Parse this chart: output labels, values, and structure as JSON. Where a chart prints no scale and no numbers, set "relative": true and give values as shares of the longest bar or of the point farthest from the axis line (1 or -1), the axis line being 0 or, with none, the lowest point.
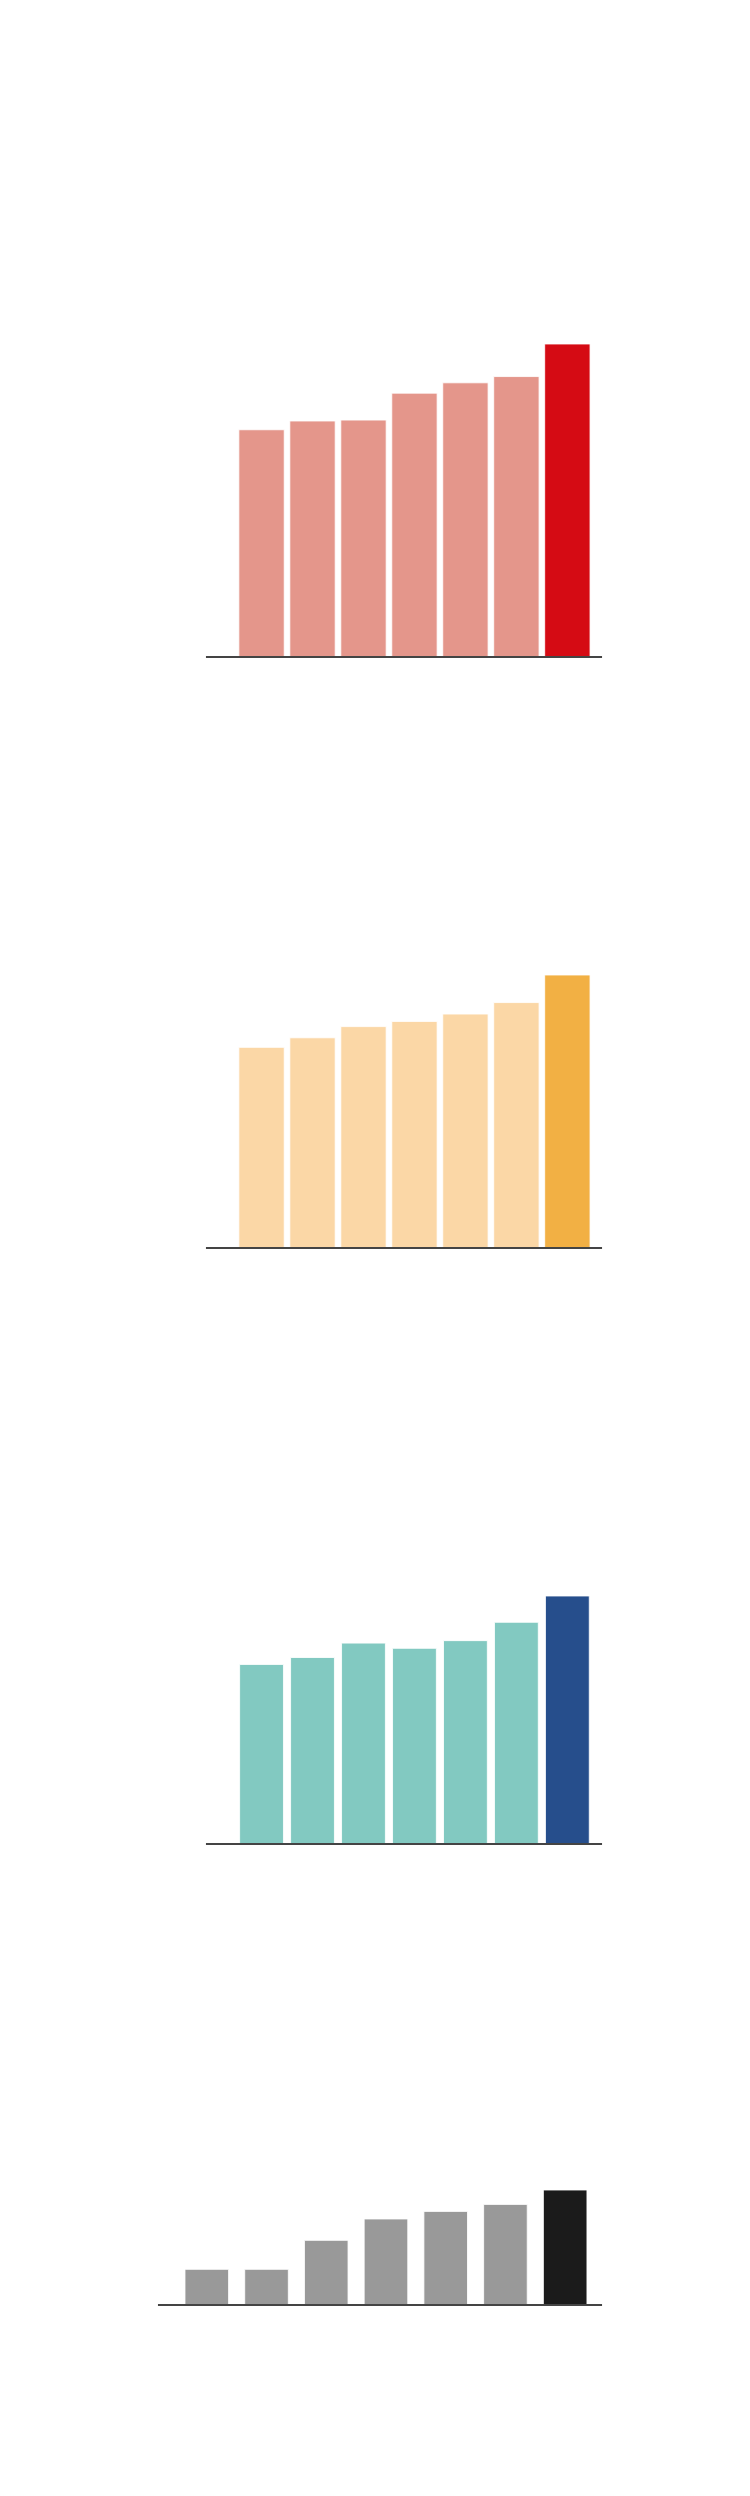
{
  "chart_data": [
    {
      "type": "bar",
      "relative": true,
      "categories": [
        null,
        null,
        null,
        null,
        null,
        null,
        null
      ],
      "values": [
        0.726,
        0.754,
        0.757,
        0.843,
        0.876,
        0.896,
        1
      ],
      "colors": [
        "#e4968b",
        "#e4968b",
        "#e4968b",
        "#e4968b",
        "#e4968b",
        "#e4968b",
        "#d50b14"
      ]
    },
    {
      "type": "bar",
      "relative": true,
      "categories": [
        null,
        null,
        null,
        null,
        null,
        null,
        null
      ],
      "values": [
        0.735,
        0.77,
        0.811,
        0.83,
        0.857,
        0.899,
        1
      ],
      "colors": [
        "#fbd7a6",
        "#fbd7a6",
        "#fbd7a6",
        "#fbd7a6",
        "#fbd7a6",
        "#fbd7a6",
        "#f2b044"
      ]
    },
    {
      "type": "bar",
      "relative": true,
      "categories": [
        null,
        null,
        null,
        null,
        null,
        null,
        null
      ],
      "values": [
        0.724,
        0.752,
        0.81,
        0.789,
        0.82,
        0.894,
        1
      ],
      "colors": [
        "#82c9c1",
        "#82c9c1",
        "#82c9c1",
        "#82c9c1",
        "#82c9c1",
        "#82c9c1",
        "#264e8c"
      ]
    },
    {
      "type": "bar",
      "relative": true,
      "categories": [
        null,
        null,
        null,
        null,
        null,
        null,
        null
      ],
      "values": [
        0.31,
        0.31,
        0.562,
        0.748,
        0.814,
        0.875,
        1
      ],
      "colors": [
        "#999999",
        "#999999",
        "#999999",
        "#999999",
        "#999999",
        "#999999",
        "#1b1b1b"
      ]
    }
  ]
}
